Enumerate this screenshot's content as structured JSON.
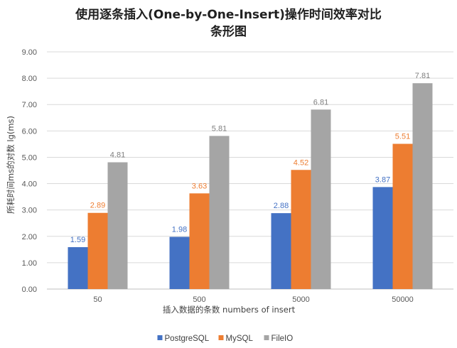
{
  "chart_data": {
    "type": "bar",
    "title_line1": "使用逐条插入(One-by-One-Insert)操作时间效率对比",
    "title_line2": "条形图",
    "xlabel": "插入数据的条数 numbers of insert",
    "ylabel": "所耗时间ms的对数 lg(ms)",
    "categories": [
      "50",
      "500",
      "5000",
      "50000"
    ],
    "ylim": [
      0,
      9
    ],
    "yticks": [
      "0.00",
      "1.00",
      "2.00",
      "3.00",
      "4.00",
      "5.00",
      "6.00",
      "7.00",
      "8.00",
      "9.00"
    ],
    "grid": true,
    "legend_position": "bottom",
    "series": [
      {
        "name": "PostgreSQL",
        "color": "#4472c4",
        "values": [
          1.59,
          1.98,
          2.88,
          3.87
        ],
        "labels": [
          "1.59",
          "1.98",
          "2.88",
          "3.87"
        ]
      },
      {
        "name": "MySQL",
        "color": "#ed7d31",
        "values": [
          2.89,
          3.63,
          4.52,
          5.51
        ],
        "labels": [
          "2.89",
          "3.63",
          "4.52",
          "5.51"
        ]
      },
      {
        "name": "FileIO",
        "color": "#a5a5a5",
        "values": [
          4.81,
          5.81,
          6.81,
          7.81
        ],
        "labels": [
          "4.81",
          "5.81",
          "6.81",
          "7.81"
        ]
      }
    ]
  }
}
